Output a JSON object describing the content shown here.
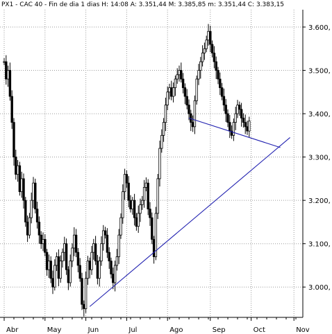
{
  "header": {
    "text": "PX1 - CAC 40 - Fin de dia 1 dias H: 14:08  A: 3.351,44  M: 3.385,85  m: 3.351,44  C: 3.383,15"
  },
  "colors": {
    "candle": "#000000",
    "trendline": "#2020b0",
    "grid": "#9a9a9a",
    "background": "#ffffff"
  },
  "chart_data": {
    "type": "line",
    "title": "",
    "xlabel": "",
    "ylabel": "",
    "ylim": [
      2930,
      3640
    ],
    "grid": true,
    "x_ticks": [
      {
        "label": "Abr",
        "pos": 0
      },
      {
        "label": "May",
        "pos": 21
      },
      {
        "label": "Jun",
        "pos": 42
      },
      {
        "label": "Jul",
        "pos": 63
      },
      {
        "label": "Ago",
        "pos": 84
      },
      {
        "label": "Sep",
        "pos": 106
      },
      {
        "label": "Oct",
        "pos": 127
      },
      {
        "label": "Nov",
        "pos": 149
      }
    ],
    "y_ticks": [
      {
        "label": "3.000,",
        "value": 3000
      },
      {
        "label": "3.100,",
        "value": 3100
      },
      {
        "label": "3.200,",
        "value": 3200
      },
      {
        "label": "3.300,",
        "value": 3300
      },
      {
        "label": "3.400,",
        "value": 3400
      },
      {
        "label": "3.500,",
        "value": 3500
      },
      {
        "label": "3.600,",
        "value": 3600
      }
    ],
    "series": [
      {
        "values": [
          3520,
          3480,
          3500,
          3440,
          3380,
          3300,
          3260,
          3280,
          3220,
          3250,
          3200,
          3150,
          3120,
          3160,
          3200,
          3240,
          3180,
          3150,
          3120,
          3100,
          3110,
          3080,
          3040,
          3060,
          3020,
          3000,
          3050,
          3070,
          3020,
          3060,
          3080,
          3100,
          3040,
          3010,
          3060,
          3090,
          3120,
          3080,
          3050,
          3020,
          2960,
          2950,
          3020,
          3060,
          3040,
          3080,
          3100,
          3060,
          3020,
          3060,
          3100,
          3130,
          3120,
          3080,
          3060,
          3030,
          3010,
          3050,
          3070,
          3120,
          3160,
          3220,
          3260,
          3240,
          3200,
          3180,
          3200,
          3160,
          3140,
          3170,
          3190,
          3200,
          3230,
          3240,
          3180,
          3160,
          3110,
          3070,
          3170,
          3250,
          3320,
          3350,
          3380,
          3420,
          3450,
          3460,
          3440,
          3460,
          3480,
          3490,
          3500,
          3480,
          3460,
          3440,
          3420,
          3400,
          3380,
          3370,
          3430,
          3480,
          3500,
          3520,
          3540,
          3550,
          3570,
          3590,
          3560,
          3540,
          3520,
          3500,
          3480,
          3460,
          3440,
          3420,
          3400,
          3380,
          3360,
          3350,
          3380,
          3400,
          3420,
          3410,
          3390,
          3380,
          3370,
          3360,
          3383
        ]
      }
    ],
    "trendlines": [
      {
        "from": {
          "pos": 44,
          "value": 2955
        },
        "to": {
          "pos": 147,
          "value": 3345
        }
      },
      {
        "from": {
          "pos": 95,
          "value": 3390
        },
        "to": {
          "pos": 142,
          "value": 3322
        }
      }
    ]
  }
}
